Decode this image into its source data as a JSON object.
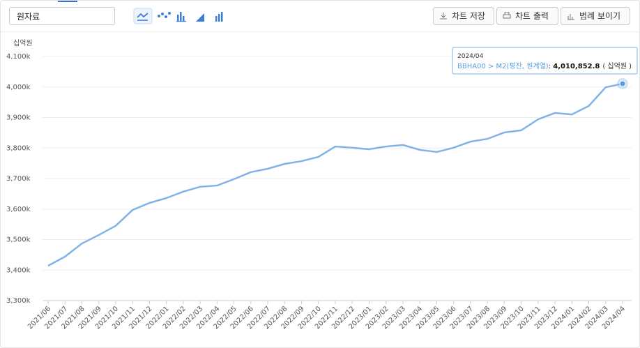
{
  "toolbar": {
    "dataset": "원자료",
    "buttons": [
      "차트 저장",
      "차트 출력",
      "범례 보이기"
    ]
  },
  "chart_data": {
    "type": "line",
    "y_unit": "십억원",
    "categories": [
      "2021/06",
      "2021/07",
      "2021/08",
      "2021/09",
      "2021/10",
      "2021/11",
      "2021/12",
      "2022/01",
      "2022/02",
      "2022/03",
      "2022/04",
      "2022/05",
      "2022/06",
      "2022/07",
      "2022/08",
      "2022/09",
      "2022/10",
      "2022/11",
      "2022/12",
      "2023/01",
      "2023/02",
      "2023/03",
      "2023/04",
      "2023/05",
      "2023/06",
      "2023/07",
      "2023/08",
      "2023/09",
      "2023/10",
      "2023/11",
      "2023/12",
      "2024/01",
      "2024/02",
      "2024/03",
      "2024/04"
    ],
    "series": [
      {
        "name": "BBHA00 > M2(평잔, 원계열)",
        "color": "#7fb3e8",
        "values": [
          3414000,
          3444000,
          3487000,
          3515000,
          3545000,
          3597000,
          3620000,
          3636000,
          3657000,
          3673000,
          3677000,
          3698000,
          3721000,
          3732000,
          3748000,
          3757000,
          3771000,
          3805000,
          3801000,
          3796000,
          3805000,
          3810000,
          3794000,
          3787000,
          3801000,
          3821000,
          3830000,
          3851000,
          3858000,
          3894000,
          3915000,
          3910000,
          3938000,
          3999000,
          4010852.8
        ]
      }
    ],
    "ylim": [
      3300000,
      4100000
    ],
    "yticks": [
      {
        "value": 3300000,
        "label": "3,300k"
      },
      {
        "value": 3400000,
        "label": "3,400k"
      },
      {
        "value": 3500000,
        "label": "3,500k"
      },
      {
        "value": 3600000,
        "label": "3,600k"
      },
      {
        "value": 3700000,
        "label": "3,700k"
      },
      {
        "value": 3800000,
        "label": "3,800k"
      },
      {
        "value": 3900000,
        "label": "3,900k"
      },
      {
        "value": 4000000,
        "label": "4,000k"
      },
      {
        "value": 4100000,
        "label": "4,100k"
      }
    ],
    "grid": true,
    "tooltip": {
      "x": "2024/04",
      "series": "BBHA00 > M2(평잔, 원계열)",
      "value": {
        "value": 4010852.8,
        "label": "4,010,852.8"
      },
      "unit": "( 십억원 )"
    }
  }
}
